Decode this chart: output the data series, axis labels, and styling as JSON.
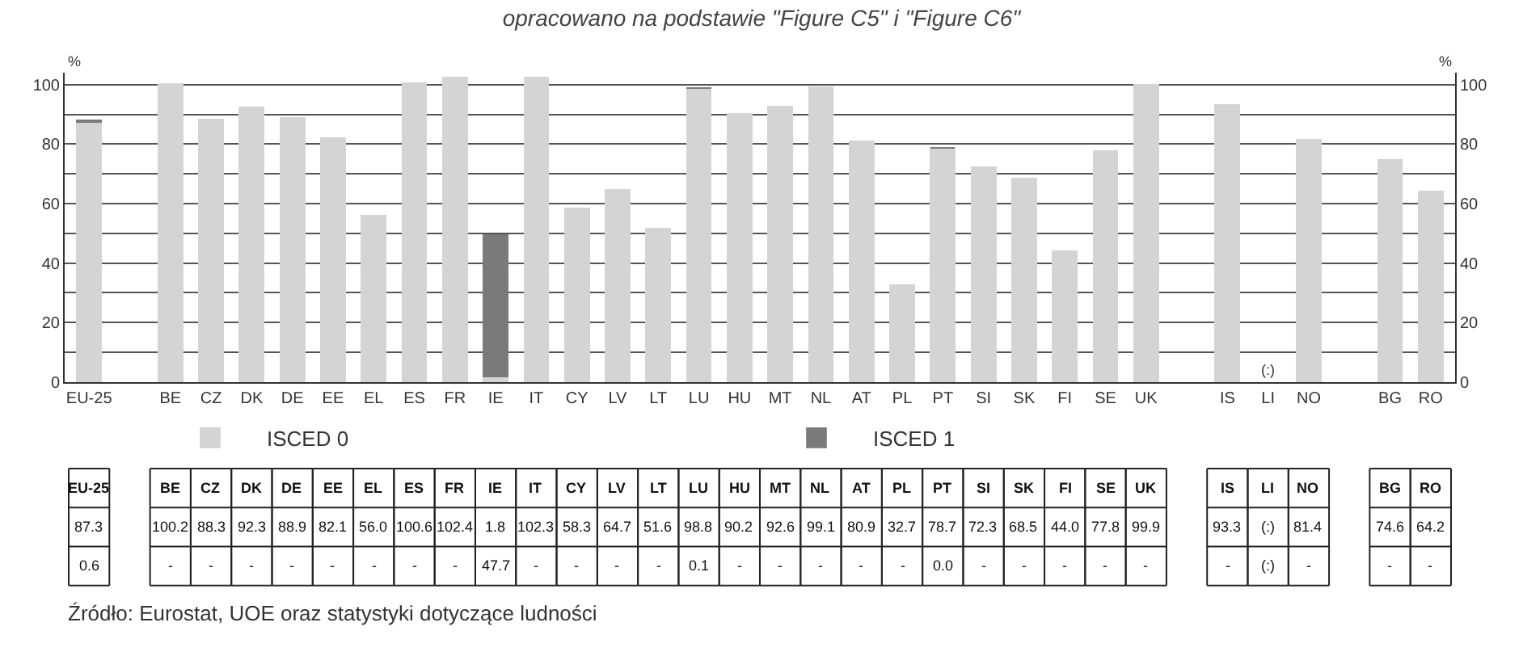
{
  "chart_data": {
    "type": "bar",
    "stacked": true,
    "title": "opracowano na podstawie \"Figure C5\" i \"Figure C6\"",
    "ylabel": "%",
    "y2label": "%",
    "categories": [
      "EU-25",
      null,
      "BE",
      "CZ",
      "DK",
      "DE",
      "EE",
      "EL",
      "ES",
      "FR",
      "IE",
      "IT",
      "CY",
      "LV",
      "LT",
      "LU",
      "HU",
      "MT",
      "NL",
      "AT",
      "PL",
      "PT",
      "SI",
      "SK",
      "FI",
      "SE",
      "UK",
      null,
      "IS",
      "LI",
      "NO",
      null,
      "BG",
      "RO"
    ],
    "series": [
      {
        "name": "ISCED 0",
        "color": "#d4d4d4",
        "values": [
          87.3,
          null,
          100.2,
          88.3,
          92.3,
          88.9,
          82.1,
          56.0,
          100.6,
          102.4,
          1.8,
          102.3,
          58.3,
          64.7,
          51.6,
          98.8,
          90.2,
          92.6,
          99.1,
          80.9,
          32.7,
          78.7,
          72.3,
          68.5,
          44.0,
          77.8,
          99.9,
          null,
          93.3,
          null,
          81.4,
          null,
          74.6,
          64.2
        ],
        "value_labels": [
          "87.3",
          null,
          "100.2",
          "88.3",
          "92.3",
          "88.9",
          "82.1",
          "56.0",
          "100.6",
          "102.4",
          "1.8",
          "102.3",
          "58.3",
          "64.7",
          "51.6",
          "98.8",
          "90.2",
          "92.6",
          "99.1",
          "80.9",
          "32.7",
          "78.7",
          "72.3",
          "68.5",
          "44.0",
          "77.8",
          "99.9",
          null,
          "93.3",
          "(:)",
          "81.4",
          null,
          "74.6",
          "64.2"
        ]
      },
      {
        "name": "ISCED 1",
        "color": "#7a7a7a",
        "values": [
          0.6,
          null,
          null,
          null,
          null,
          null,
          null,
          null,
          null,
          null,
          47.7,
          null,
          null,
          null,
          null,
          0.1,
          null,
          null,
          null,
          null,
          null,
          0.0,
          null,
          null,
          null,
          null,
          null,
          null,
          null,
          null,
          null,
          null,
          null,
          null
        ],
        "value_labels": [
          "0.6",
          null,
          "-",
          "-",
          "-",
          "-",
          "-",
          "-",
          "-",
          "-",
          "47.7",
          "-",
          "-",
          "-",
          "-",
          "0.1",
          "-",
          "-",
          "-",
          "-",
          "-",
          "0.0",
          "-",
          "-",
          "-",
          "-",
          "-",
          null,
          "-",
          "(:)",
          "-",
          null,
          "-",
          "-"
        ]
      }
    ],
    "ylim": [
      0,
      104
    ],
    "yticks": [
      0,
      {
        "value": 10,
        "label": null
      },
      20,
      {
        "value": 30,
        "label": null
      },
      40,
      {
        "value": 50,
        "label": null
      },
      60,
      {
        "value": 70,
        "label": null
      },
      80,
      {
        "value": 90,
        "label": null
      },
      100
    ],
    "y2lim": [
      0,
      104
    ],
    "y2ticks": [
      0,
      20,
      40,
      60,
      80,
      100
    ],
    "grid": "y",
    "legend": "bottom",
    "annotations": [
      "(:)",
      "Źródło: Eurostat, UOE oraz statystyki dotyczące ludności"
    ]
  }
}
